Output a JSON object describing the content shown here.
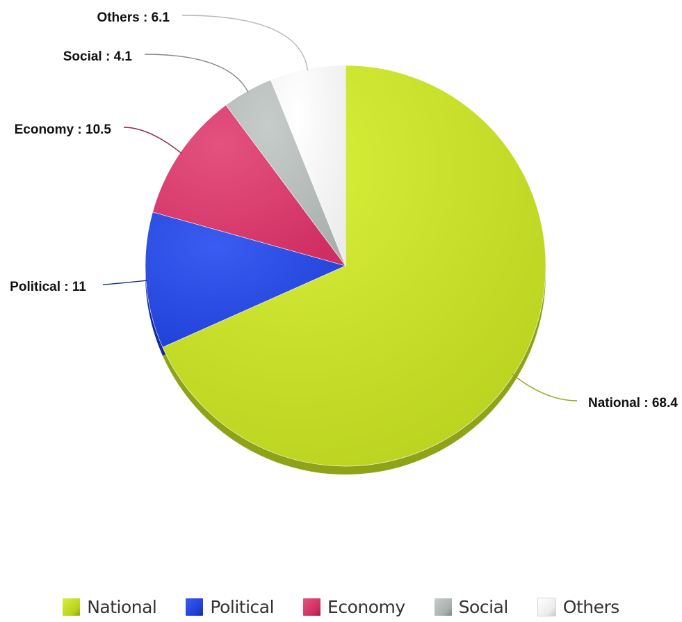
{
  "chart_data": {
    "type": "pie",
    "title": "",
    "start_angle_deg": 0,
    "direction": "clockwise",
    "legend_position": "bottom",
    "label_separator": " : ",
    "slices": [
      {
        "label": "National",
        "value": 68.4,
        "color": "#b9d21f",
        "highlight": "#d8ef3a",
        "shadow": "#8fa318"
      },
      {
        "label": "Political",
        "value": 11,
        "color": "#1f3fd6",
        "highlight": "#3a5cf0",
        "shadow": "#142b9a"
      },
      {
        "label": "Economy",
        "value": 10.5,
        "color": "#cf2e62",
        "highlight": "#e4527f",
        "shadow": "#9a1f47"
      },
      {
        "label": "Social",
        "value": 4.1,
        "color": "#a8b0ae",
        "highlight": "#c6ccca",
        "shadow": "#7f8786"
      },
      {
        "label": "Others",
        "value": 6.1,
        "color": "#ececec",
        "highlight": "#ffffff",
        "shadow": "#c9c9c9"
      }
    ]
  }
}
